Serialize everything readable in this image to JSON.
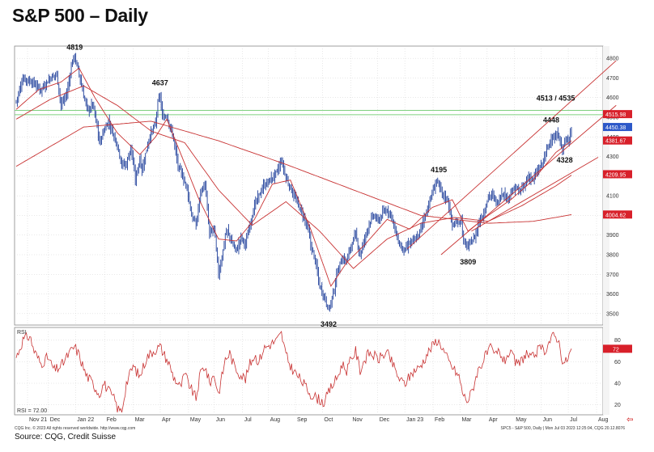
{
  "title": "S&P 500 – Daily",
  "footer_left": "CQG Inc. © 2023 All rights reserved worldwide. http://www.cqg.com",
  "footer_right": "SPC5 - S&P 500, Daily | Mon Jul 03 2023 12:25:04, CQG 20.12.8076",
  "source": "Source: CQG, Credit Suisse",
  "colors": {
    "price": "#1f3f9a",
    "ma": "#c83232",
    "rsi": "#c83232",
    "hline": "#7fd07f",
    "grid": "#d0d0d0",
    "channel": "#c83232",
    "tag_red": "#d8202a",
    "tag_blue": "#2c58c8"
  },
  "chart_data": [
    {
      "type": "ohlc",
      "title": "S&P 500 – Daily",
      "ylim": [
        3450,
        4850
      ],
      "yticks": [
        3500,
        3600,
        3700,
        3800,
        3900,
        4000,
        4100,
        4200,
        4300,
        4400,
        4500,
        4600,
        4700,
        4800
      ],
      "xticks": [
        "Nov 21",
        "Dec",
        "Jan 22",
        "Feb",
        "Mar",
        "Apr",
        "May",
        "Jun",
        "Jul",
        "Aug",
        "Sep",
        "Oct",
        "Nov",
        "Dec",
        "Jan 23",
        "Feb",
        "Mar",
        "Apr",
        "May",
        "Jun",
        "Jul",
        "Aug"
      ],
      "close_anchors": [
        [
          0,
          4580
        ],
        [
          6,
          4700
        ],
        [
          14,
          4680
        ],
        [
          22,
          4640
        ],
        [
          30,
          4700
        ],
        [
          36,
          4720
        ],
        [
          40,
          4560
        ],
        [
          45,
          4620
        ],
        [
          50,
          4790
        ],
        [
          52,
          4810
        ],
        [
          56,
          4720
        ],
        [
          60,
          4610
        ],
        [
          64,
          4530
        ],
        [
          68,
          4570
        ],
        [
          72,
          4450
        ],
        [
          74,
          4370
        ],
        [
          78,
          4430
        ],
        [
          82,
          4480
        ],
        [
          86,
          4420
        ],
        [
          90,
          4360
        ],
        [
          94,
          4260
        ],
        [
          98,
          4260
        ],
        [
          102,
          4350
        ],
        [
          106,
          4180
        ],
        [
          110,
          4290
        ],
        [
          112,
          4230
        ],
        [
          118,
          4390
        ],
        [
          124,
          4470
        ],
        [
          126,
          4570
        ],
        [
          128,
          4610
        ],
        [
          130,
          4500
        ],
        [
          134,
          4510
        ],
        [
          140,
          4390
        ],
        [
          144,
          4250
        ],
        [
          148,
          4200
        ],
        [
          152,
          4140
        ],
        [
          156,
          4000
        ],
        [
          160,
          3950
        ],
        [
          164,
          4120
        ],
        [
          168,
          4160
        ],
        [
          172,
          3900
        ],
        [
          176,
          3940
        ],
        [
          180,
          3700
        ],
        [
          184,
          3820
        ],
        [
          186,
          3900
        ],
        [
          188,
          3920
        ],
        [
          192,
          3860
        ],
        [
          196,
          3820
        ],
        [
          200,
          3890
        ],
        [
          204,
          3850
        ],
        [
          208,
          3960
        ],
        [
          212,
          4050
        ],
        [
          216,
          4100
        ],
        [
          220,
          4150
        ],
        [
          226,
          4180
        ],
        [
          232,
          4220
        ],
        [
          236,
          4280
        ],
        [
          240,
          4190
        ],
        [
          244,
          4140
        ],
        [
          248,
          4090
        ],
        [
          252,
          4040
        ],
        [
          256,
          3990
        ],
        [
          260,
          3920
        ],
        [
          262,
          3850
        ],
        [
          266,
          3770
        ],
        [
          270,
          3640
        ],
        [
          274,
          3590
        ],
        [
          278,
          3520
        ],
        [
          282,
          3600
        ],
        [
          286,
          3720
        ],
        [
          290,
          3780
        ],
        [
          294,
          3770
        ],
        [
          298,
          3850
        ],
        [
          302,
          3900
        ],
        [
          306,
          3800
        ],
        [
          310,
          3880
        ],
        [
          314,
          3960
        ],
        [
          318,
          4000
        ],
        [
          322,
          3970
        ],
        [
          326,
          4010
        ],
        [
          330,
          4030
        ],
        [
          334,
          4000
        ],
        [
          338,
          3900
        ],
        [
          342,
          3840
        ],
        [
          346,
          3820
        ],
        [
          350,
          3860
        ],
        [
          354,
          3870
        ],
        [
          358,
          3900
        ],
        [
          362,
          3970
        ],
        [
          366,
          4040
        ],
        [
          370,
          4110
        ],
        [
          374,
          4180
        ],
        [
          376,
          4150
        ],
        [
          380,
          4100
        ],
        [
          384,
          4080
        ],
        [
          388,
          3950
        ],
        [
          392,
          3960
        ],
        [
          396,
          3980
        ],
        [
          398,
          3860
        ],
        [
          402,
          3840
        ],
        [
          404,
          3860
        ],
        [
          408,
          3890
        ],
        [
          412,
          3970
        ],
        [
          416,
          4010
        ],
        [
          420,
          4100
        ],
        [
          424,
          4100
        ],
        [
          428,
          4060
        ],
        [
          432,
          4120
        ],
        [
          436,
          4090
        ],
        [
          440,
          4110
        ],
        [
          444,
          4140
        ],
        [
          448,
          4120
        ],
        [
          452,
          4150
        ],
        [
          456,
          4200
        ],
        [
          460,
          4180
        ],
        [
          464,
          4230
        ],
        [
          468,
          4260
        ],
        [
          470,
          4300
        ],
        [
          474,
          4360
        ],
        [
          476,
          4400
        ],
        [
          480,
          4390
        ],
        [
          482,
          4420
        ],
        [
          486,
          4330
        ],
        [
          488,
          4380
        ],
        [
          490,
          4370
        ],
        [
          494,
          4440
        ]
      ],
      "ma_short": [
        [
          0,
          4540
        ],
        [
          20,
          4640
        ],
        [
          40,
          4680
        ],
        [
          56,
          4750
        ],
        [
          70,
          4600
        ],
        [
          90,
          4420
        ],
        [
          110,
          4310
        ],
        [
          124,
          4400
        ],
        [
          134,
          4490
        ],
        [
          146,
          4320
        ],
        [
          162,
          4090
        ],
        [
          180,
          3880
        ],
        [
          196,
          3870
        ],
        [
          212,
          3980
        ],
        [
          228,
          4160
        ],
        [
          244,
          4180
        ],
        [
          262,
          3930
        ],
        [
          280,
          3640
        ],
        [
          294,
          3760
        ],
        [
          310,
          3850
        ],
        [
          330,
          3980
        ],
        [
          350,
          3930
        ],
        [
          370,
          4040
        ],
        [
          388,
          4080
        ],
        [
          402,
          3920
        ],
        [
          420,
          4000
        ],
        [
          440,
          4080
        ],
        [
          460,
          4180
        ],
        [
          480,
          4320
        ],
        [
          494,
          4380
        ]
      ],
      "ma_mid": [
        [
          0,
          4490
        ],
        [
          30,
          4590
        ],
        [
          60,
          4660
        ],
        [
          90,
          4560
        ],
        [
          120,
          4430
        ],
        [
          150,
          4370
        ],
        [
          180,
          4130
        ],
        [
          210,
          3950
        ],
        [
          240,
          4070
        ],
        [
          270,
          3920
        ],
        [
          300,
          3730
        ],
        [
          330,
          3880
        ],
        [
          360,
          3960
        ],
        [
          390,
          3990
        ],
        [
          420,
          3970
        ],
        [
          450,
          4050
        ],
        [
          480,
          4150
        ],
        [
          494,
          4205
        ]
      ],
      "ma_long": [
        [
          0,
          4250
        ],
        [
          60,
          4450
        ],
        [
          120,
          4480
        ],
        [
          180,
          4380
        ],
        [
          240,
          4260
        ],
        [
          300,
          4130
        ],
        [
          360,
          4000
        ],
        [
          420,
          3960
        ],
        [
          460,
          3970
        ],
        [
          494,
          4004
        ]
      ],
      "hlines": [
        4513,
        4535
      ],
      "channels": [
        [
          [
            348,
            3830
          ],
          [
            505,
            4640
          ]
        ],
        [
          [
            378,
            3800
          ],
          [
            505,
            4420
          ]
        ],
        [
          [
            405,
            3920
          ],
          [
            489,
            4200
          ]
        ]
      ],
      "annotations": [
        {
          "i": 52,
          "price": 4819,
          "text": "4819"
        },
        {
          "i": 128,
          "price": 4637,
          "text": "4637"
        },
        {
          "i": 278,
          "price": 3492,
          "text": "3492"
        },
        {
          "i": 376,
          "price": 4195,
          "text": "4195"
        },
        {
          "i": 402,
          "price": 3809,
          "text": "3809"
        },
        {
          "i": 476,
          "price": 4448,
          "text": "4448"
        },
        {
          "i": 488,
          "price": 4328,
          "text": "4328"
        },
        {
          "i": 480,
          "price": 4560,
          "text": "4513 / 4535"
        }
      ],
      "price_tags": [
        {
          "value": 4515.98,
          "text": "4515.98",
          "color": "tag_red"
        },
        {
          "value": 4450.38,
          "text": "4450.38",
          "color": "tag_blue"
        },
        {
          "value": 4381.67,
          "text": "4381.67",
          "color": "tag_red"
        },
        {
          "value": 4209.95,
          "text": "4209.95",
          "color": "tag_red"
        },
        {
          "value": 4004.62,
          "text": "4004.62",
          "color": "tag_red"
        }
      ]
    },
    {
      "type": "line",
      "title": "RSI",
      "ylim": [
        13,
        88
      ],
      "yticks": [
        20,
        40,
        60,
        80
      ],
      "last_value_label": "RSI =   72.00",
      "last_value_tag": "72",
      "overbought_line": 72,
      "values_anchors": [
        [
          0,
          64
        ],
        [
          6,
          80
        ],
        [
          12,
          84
        ],
        [
          16,
          70
        ],
        [
          22,
          58
        ],
        [
          28,
          64
        ],
        [
          34,
          52
        ],
        [
          40,
          56
        ],
        [
          46,
          66
        ],
        [
          52,
          74
        ],
        [
          56,
          66
        ],
        [
          62,
          48
        ],
        [
          68,
          40
        ],
        [
          74,
          30
        ],
        [
          78,
          40
        ],
        [
          84,
          30
        ],
        [
          88,
          24
        ],
        [
          90,
          16
        ],
        [
          94,
          14
        ],
        [
          98,
          40
        ],
        [
          104,
          56
        ],
        [
          110,
          46
        ],
        [
          116,
          64
        ],
        [
          122,
          70
        ],
        [
          128,
          74
        ],
        [
          132,
          66
        ],
        [
          136,
          58
        ],
        [
          140,
          46
        ],
        [
          146,
          36
        ],
        [
          150,
          48
        ],
        [
          156,
          34
        ],
        [
          160,
          26
        ],
        [
          164,
          50
        ],
        [
          168,
          56
        ],
        [
          172,
          40
        ],
        [
          176,
          48
        ],
        [
          180,
          30
        ],
        [
          186,
          62
        ],
        [
          190,
          68
        ],
        [
          194,
          56
        ],
        [
          198,
          50
        ],
        [
          204,
          44
        ],
        [
          208,
          58
        ],
        [
          212,
          66
        ],
        [
          216,
          60
        ],
        [
          220,
          72
        ],
        [
          226,
          76
        ],
        [
          232,
          80
        ],
        [
          236,
          86
        ],
        [
          240,
          66
        ],
        [
          244,
          56
        ],
        [
          248,
          50
        ],
        [
          254,
          42
        ],
        [
          258,
          36
        ],
        [
          262,
          30
        ],
        [
          268,
          26
        ],
        [
          274,
          22
        ],
        [
          280,
          36
        ],
        [
          286,
          46
        ],
        [
          290,
          58
        ],
        [
          294,
          52
        ],
        [
          298,
          62
        ],
        [
          302,
          70
        ],
        [
          306,
          52
        ],
        [
          310,
          62
        ],
        [
          314,
          68
        ],
        [
          318,
          66
        ],
        [
          322,
          62
        ],
        [
          326,
          66
        ],
        [
          330,
          68
        ],
        [
          334,
          60
        ],
        [
          338,
          50
        ],
        [
          342,
          42
        ],
        [
          346,
          40
        ],
        [
          350,
          46
        ],
        [
          354,
          52
        ],
        [
          358,
          54
        ],
        [
          362,
          60
        ],
        [
          366,
          68
        ],
        [
          370,
          74
        ],
        [
          374,
          80
        ],
        [
          378,
          76
        ],
        [
          382,
          66
        ],
        [
          386,
          58
        ],
        [
          390,
          52
        ],
        [
          394,
          46
        ],
        [
          398,
          28
        ],
        [
          402,
          24
        ],
        [
          406,
          34
        ],
        [
          410,
          50
        ],
        [
          414,
          58
        ],
        [
          418,
          66
        ],
        [
          422,
          72
        ],
        [
          426,
          66
        ],
        [
          430,
          70
        ],
        [
          434,
          60
        ],
        [
          438,
          68
        ],
        [
          442,
          64
        ],
        [
          446,
          56
        ],
        [
          450,
          62
        ],
        [
          454,
          68
        ],
        [
          458,
          62
        ],
        [
          462,
          68
        ],
        [
          466,
          72
        ],
        [
          470,
          70
        ],
        [
          474,
          78
        ],
        [
          478,
          84
        ],
        [
          482,
          82
        ],
        [
          486,
          62
        ],
        [
          488,
          58
        ],
        [
          492,
          66
        ],
        [
          494,
          72
        ]
      ]
    }
  ]
}
